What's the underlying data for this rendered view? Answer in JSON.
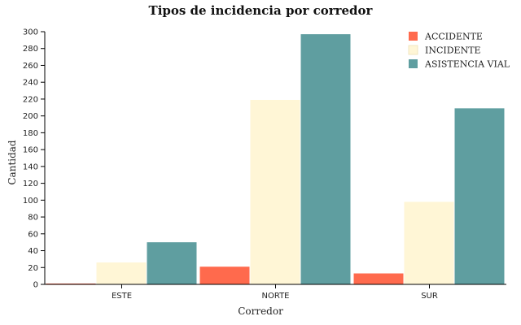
{
  "chart_data": {
    "type": "bar",
    "title": "Tipos de incidencia por corredor",
    "xlabel": "Corredor",
    "ylabel": "Cantidad",
    "categories": [
      "ESTE",
      "NORTE",
      "SUR"
    ],
    "ylim": [
      0,
      300
    ],
    "yticks": [
      0,
      20,
      40,
      60,
      80,
      100,
      120,
      140,
      160,
      180,
      200,
      220,
      240,
      260,
      280,
      300
    ],
    "grid": false,
    "legend_position": "top-right",
    "series": [
      {
        "name": "ACCIDENTE",
        "color": "#ff6a4d",
        "values": [
          1,
          21,
          13
        ]
      },
      {
        "name": "INCIDENTE",
        "color": "#fff6d6",
        "values": [
          26,
          219,
          98
        ]
      },
      {
        "name": "ASISTENCIA VIAL",
        "color": "#5f9ea0",
        "values": [
          50,
          297,
          209
        ]
      }
    ]
  }
}
